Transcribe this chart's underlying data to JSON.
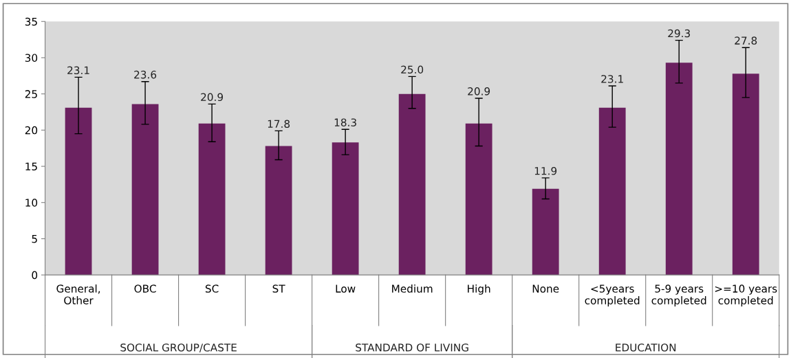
{
  "chart_data": {
    "type": "bar",
    "categories": [
      "General,\nOther",
      "OBC",
      "SC",
      "ST",
      "Low",
      "Medium",
      "High",
      "None",
      "<5years\ncompleted",
      "5-9 years\ncompleted",
      ">=10 years\ncompleted"
    ],
    "values": [
      23.1,
      23.6,
      20.9,
      17.8,
      18.3,
      25.0,
      20.9,
      11.9,
      23.1,
      29.3,
      27.8
    ],
    "errors": [
      [
        19.5,
        27.3
      ],
      [
        20.8,
        26.7
      ],
      [
        18.4,
        23.6
      ],
      [
        15.9,
        19.9
      ],
      [
        16.6,
        20.1
      ],
      [
        23.0,
        27.4
      ],
      [
        17.8,
        24.4
      ],
      [
        10.5,
        13.4
      ],
      [
        20.4,
        26.1
      ],
      [
        26.5,
        32.4
      ],
      [
        24.5,
        31.4
      ]
    ],
    "color": "#6b2160",
    "value_labels": [
      "23.1",
      "23.6",
      "20.9",
      "17.8",
      "18.3",
      "25.0",
      "20.9",
      "11.9",
      "23.1",
      "29.3",
      "27.8"
    ],
    "ylim": [
      0,
      35
    ],
    "yticks": [
      0,
      5,
      10,
      15,
      20,
      25,
      30,
      35
    ],
    "grid": false,
    "annotations": [
      "SOCIAL GROUP/CASTE",
      "STANDARD OF LIVING",
      "EDUCATION"
    ]
  }
}
